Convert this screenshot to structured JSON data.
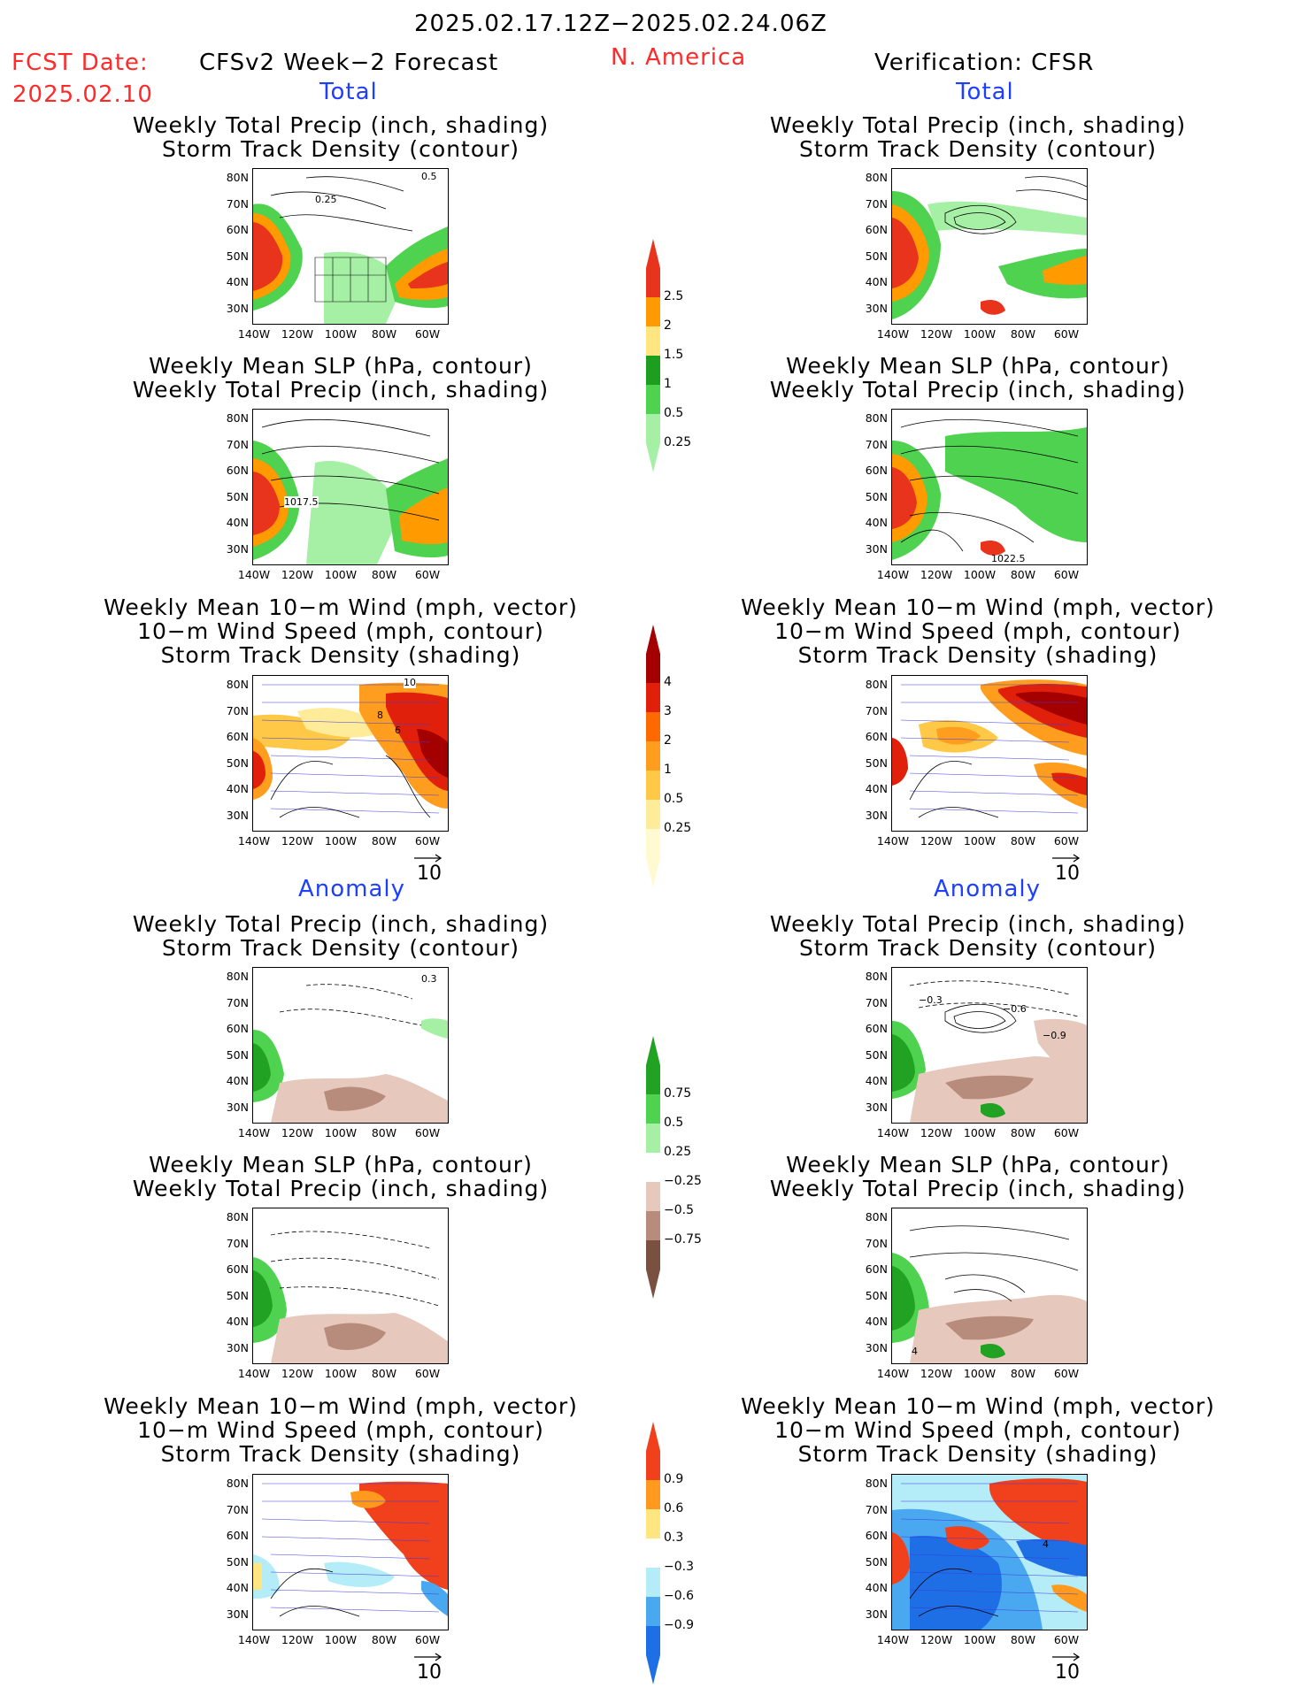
{
  "header": {
    "date_range": "2025.02.17.12Z−2025.02.24.06Z",
    "fcst_label": "FCST Date:",
    "fcst_date": "2025.02.10",
    "left_title": "CFSv2 Week−2 Forecast",
    "region": "N. America",
    "right_title": "Verification: CFSR"
  },
  "sections": {
    "total": "Total",
    "anomaly": "Anomaly"
  },
  "titles": {
    "precip_storm": [
      "Weekly Total Precip (inch, shading)",
      "Storm Track Density (contour)"
    ],
    "slp_precip": [
      "Weekly Mean SLP (hPa, contour)",
      "Weekly Total Precip (inch, shading)"
    ],
    "wind_storm": [
      "Weekly Mean 10−m Wind (mph, vector)",
      "10−m Wind Speed (mph, contour)",
      "Storm Track Density (shading)"
    ]
  },
  "axes": {
    "lat_labels": [
      "80N",
      "70N",
      "60N",
      "50N",
      "40N",
      "30N"
    ],
    "lon_labels": [
      "140W",
      "120W",
      "100W",
      "80W",
      "60W"
    ]
  },
  "vector_reference": "10",
  "contour_labels": {
    "fc_total_precip_a": "0.5",
    "fc_total_precip_b": "0.25",
    "fc_total_slp": "1017.5",
    "vf_total_slp": "1022.5",
    "fc_total_wind_a": "10",
    "fc_total_wind_b": "8",
    "fc_total_wind_c": "6",
    "fc_anom_precip": "0.3",
    "vf_anom_precip_a": "−0.3",
    "vf_anom_precip_b": "−0.6",
    "vf_anom_precip_c": "−0.9",
    "vf_anom_slp": "4",
    "vf_anom_wind": "4"
  },
  "colorbars": {
    "total_precip": {
      "labels": [
        "2.5",
        "2",
        "1.5",
        "1",
        "0.5",
        "0.25"
      ],
      "colors": [
        "#e8341c",
        "#ff9a00",
        "#ffe680",
        "#1e9e1e",
        "#4fd24f",
        "#a6f0a6"
      ]
    },
    "total_storm": {
      "labels": [
        "4",
        "3",
        "2",
        "1",
        "0.5",
        "0.25"
      ],
      "colors": [
        "#a40000",
        "#e0200a",
        "#ff6a00",
        "#ff9e1e",
        "#ffc846",
        "#ffec9a",
        "#fffad2"
      ]
    },
    "anom_precip": {
      "labels": [
        "0.75",
        "0.5",
        "0.25",
        "−0.25",
        "−0.5",
        "−0.75"
      ],
      "colors": [
        "#22a222",
        "#4fd24f",
        "#a6f0a6",
        "#ffffff",
        "#e6c8bc",
        "#b88c7c",
        "#7a5040"
      ]
    },
    "anom_storm": {
      "labels": [
        "0.9",
        "0.6",
        "0.3",
        "−0.3",
        "−0.6",
        "−0.9"
      ],
      "colors": [
        "#f0401c",
        "#ff9a1e",
        "#ffe680",
        "#ffffff",
        "#b4ecf8",
        "#4aa8f0",
        "#1e6ee6"
      ]
    }
  },
  "colors": {
    "header_red": "#ff2a2a",
    "section_blue": "#1f3fff"
  }
}
